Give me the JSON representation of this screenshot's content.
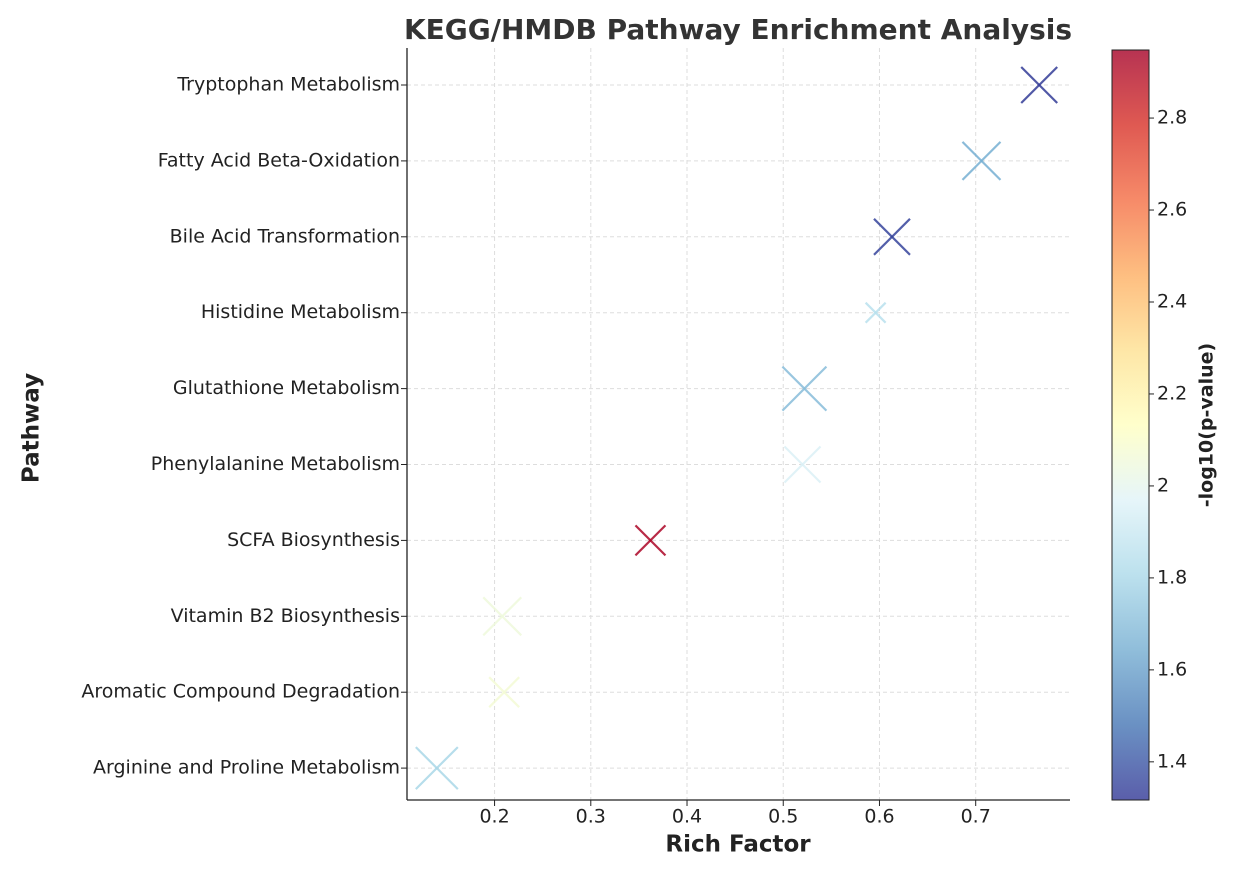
{
  "chart_data": {
    "type": "scatter",
    "title": "KEGG/HMDB Pathway Enrichment Analysis",
    "xlabel": "Rich Factor",
    "ylabel": "Pathway",
    "colorbar_label": "-log10(p-value)",
    "categories": [
      "Tryptophan Metabolism",
      "Fatty Acid Beta-Oxidation",
      "Bile Acid Transformation",
      "Histidine Metabolism",
      "Glutathione Metabolism",
      "Phenylalanine Metabolism",
      "SCFA Biosynthesis",
      "Vitamin B2 Biosynthesis",
      "Aromatic Compound Degradation",
      "Arginine and Proline Metabolism"
    ],
    "values": [
      0.766,
      0.706,
      0.613,
      0.596,
      0.522,
      0.52,
      0.362,
      0.208,
      0.21,
      0.14
    ],
    "sizes": [
      18,
      19,
      18,
      10,
      22,
      18,
      15,
      19,
      15,
      21
    ],
    "color_values": [
      1.33,
      1.65,
      1.35,
      1.85,
      1.7,
      1.95,
      2.93,
      2.05,
      2.07,
      1.8
    ],
    "colormap": [
      "#313695",
      "#4575b4",
      "#74add1",
      "#abd9e9",
      "#e0f3f8",
      "#ffffbf",
      "#fee090",
      "#fdae61",
      "#f46d43",
      "#d73027",
      "#a50026"
    ],
    "xlim": [
      0.109,
      0.798
    ],
    "xticks": [
      0.2,
      0.3,
      0.4,
      0.5,
      0.6,
      0.7
    ],
    "clim": [
      1.317,
      2.948
    ],
    "cticks": [
      1.4,
      1.6,
      1.8,
      2.0,
      2.2,
      2.4,
      2.6,
      2.8
    ],
    "grid": true
  }
}
